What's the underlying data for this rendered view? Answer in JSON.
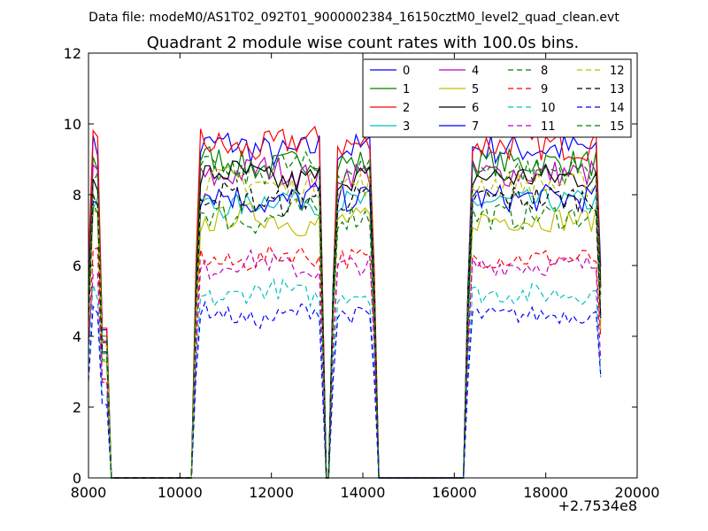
{
  "figure": {
    "suptitle": "Data file: modeM0/AS1T02_092T01_9000002384_16150cztM0_level2_quad_clean.evt",
    "title": "Quadrant 2 module wise count rates with 100.0s bins.",
    "x_offset_label": "+2.7534e8"
  },
  "chart_data": {
    "type": "line",
    "title": "Quadrant 2 module wise count rates with 100.0s bins.",
    "xlabel": "",
    "ylabel": "",
    "xlim": [
      8000,
      20000
    ],
    "ylim": [
      0,
      12
    ],
    "xticks": [
      8000,
      10000,
      12000,
      14000,
      16000,
      18000,
      20000
    ],
    "yticks": [
      0,
      2,
      4,
      6,
      8,
      10,
      12
    ],
    "x_offset": "+2.7534e8",
    "grid": false,
    "legend_position": "top-right",
    "legend_columns": 4,
    "segments": [
      [
        8000,
        8400
      ],
      [
        10350,
        13100
      ],
      [
        13350,
        14250
      ],
      [
        16300,
        19200
      ]
    ],
    "series": [
      {
        "name": "0",
        "color": "#0000ff",
        "style": "solid",
        "level": 9.3,
        "noise": 0.45
      },
      {
        "name": "1",
        "color": "#008000",
        "style": "solid",
        "level": 8.9,
        "noise": 0.4
      },
      {
        "name": "2",
        "color": "#ff0000",
        "style": "solid",
        "level": 9.4,
        "noise": 0.45
      },
      {
        "name": "3",
        "color": "#00bfbf",
        "style": "solid",
        "level": 7.8,
        "noise": 0.35
      },
      {
        "name": "4",
        "color": "#bf00bf",
        "style": "solid",
        "level": 8.6,
        "noise": 0.4
      },
      {
        "name": "5",
        "color": "#bfbf00",
        "style": "solid",
        "level": 7.3,
        "noise": 0.35
      },
      {
        "name": "6",
        "color": "#000000",
        "style": "solid",
        "level": 8.5,
        "noise": 0.4
      },
      {
        "name": "7",
        "color": "#0000ff",
        "style": "solid",
        "level": 7.9,
        "noise": 0.4
      },
      {
        "name": "8",
        "color": "#008000",
        "style": "dashed",
        "level": 7.4,
        "noise": 0.4
      },
      {
        "name": "9",
        "color": "#ff0000",
        "style": "dashed",
        "level": 6.2,
        "noise": 0.3
      },
      {
        "name": "10",
        "color": "#00bfbf",
        "style": "dashed",
        "level": 5.2,
        "noise": 0.3
      },
      {
        "name": "11",
        "color": "#bf00bf",
        "style": "dashed",
        "level": 6.0,
        "noise": 0.3
      },
      {
        "name": "12",
        "color": "#bfbf00",
        "style": "dashed",
        "level": 8.3,
        "noise": 0.4
      },
      {
        "name": "13",
        "color": "#000000",
        "style": "dashed",
        "level": 7.9,
        "noise": 0.4
      },
      {
        "name": "14",
        "color": "#0000ff",
        "style": "dashed",
        "level": 4.6,
        "noise": 0.25
      },
      {
        "name": "15",
        "color": "#008000",
        "style": "dashed",
        "level": 8.7,
        "noise": 0.4
      }
    ]
  }
}
